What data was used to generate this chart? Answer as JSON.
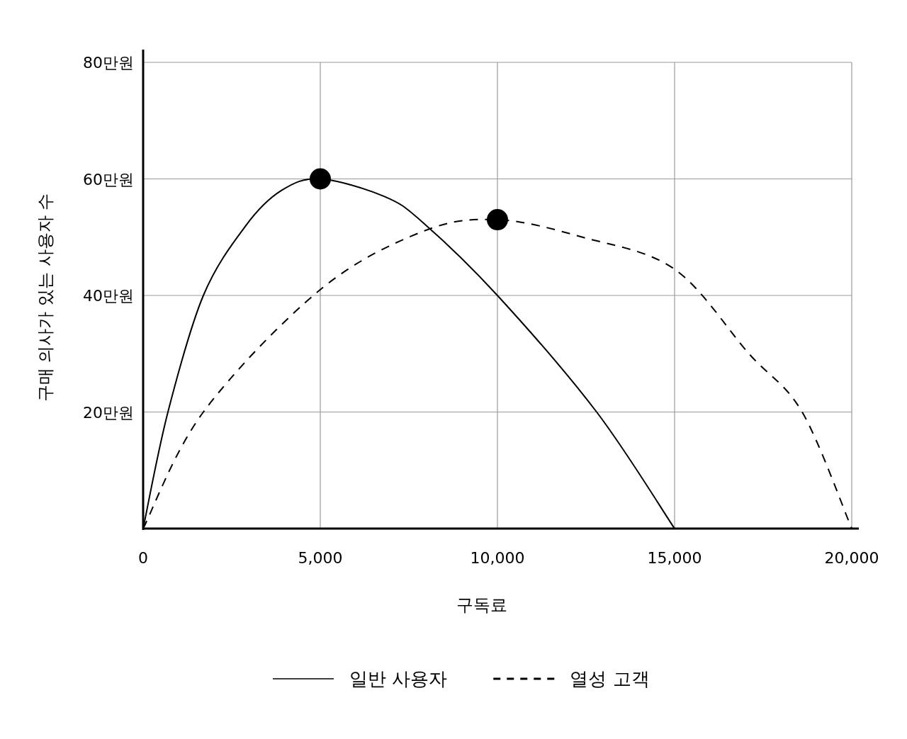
{
  "chart_data": {
    "type": "line",
    "xlabel": "구독료",
    "ylabel": "구매 의사가 있는 사용자 수",
    "xlim": [
      0,
      20000
    ],
    "ylim": [
      0,
      80
    ],
    "xticks": [
      0,
      {
        "value": 5000,
        "label": "5,000"
      },
      {
        "value": 10000,
        "label": "10,000"
      },
      {
        "value": 15000,
        "label": "15,000"
      },
      {
        "value": 20000,
        "label": "20,000"
      }
    ],
    "yticks": [
      {
        "value": 20,
        "label": "20만원"
      },
      {
        "value": 40,
        "label": "40만원"
      },
      {
        "value": 60,
        "label": "60만원"
      },
      {
        "value": 80,
        "label": "80만원"
      }
    ],
    "grid": true,
    "legend": "bottom",
    "series": [
      {
        "name": "일반 사용자",
        "color": "#000000",
        "line_style": "solid",
        "x": [
          0,
          700,
          1700,
          2900,
          3900,
          5000,
          6800,
          7900,
          10000,
          12800,
          15000
        ],
        "values": [
          0,
          20,
          40,
          52,
          58,
          60,
          57,
          52.5,
          40,
          20,
          0
        ]
      },
      {
        "name": "열성 고객",
        "color": "#000000",
        "line_style": "dashed",
        "x": [
          0,
          1700,
          5000,
          7900,
          10000,
          12400,
          15000,
          17100,
          18600,
          20000
        ],
        "values": [
          0,
          20,
          41,
          51,
          53,
          50,
          44.5,
          30,
          20,
          0
        ]
      },
      {
        "type": "scatter",
        "color": "#000000",
        "marker": "circle",
        "x": [
          5000,
          10000
        ],
        "values": [
          60,
          53
        ]
      }
    ]
  }
}
